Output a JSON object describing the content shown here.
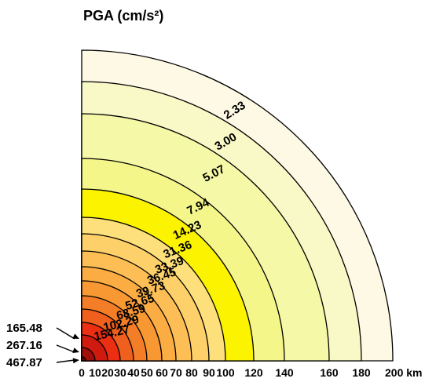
{
  "chart_data": {
    "type": "polar-contour",
    "title": "PGA (cm/s²)",
    "x_unit": "km",
    "x_ticks": [
      0,
      10,
      20,
      30,
      40,
      50,
      60,
      70,
      80,
      90,
      100,
      120,
      140,
      160,
      180,
      200
    ],
    "x_tick_labels": [
      "0",
      "10",
      "20",
      "30",
      "40",
      "50",
      "60",
      "70",
      "80",
      "90",
      "100",
      "120",
      "140",
      "160",
      "180"
    ],
    "x_unit_tick_label": "200 km",
    "xlim": [
      0,
      200
    ],
    "bands": [
      {
        "outer_km": 200,
        "pga": 2.33,
        "color": "#fdf9e4"
      },
      {
        "outer_km": 180,
        "pga": 3.0,
        "color": "#f8f9c6"
      },
      {
        "outer_km": 160,
        "pga": 5.07,
        "color": "#f5f8a6"
      },
      {
        "outer_km": 140,
        "pga": 7.94,
        "color": "#f4f68a"
      },
      {
        "outer_km": 120,
        "pga": 14.23,
        "color": "#fcf300"
      },
      {
        "outer_km": 100,
        "pga": 31.36,
        "color": "#fde07c"
      },
      {
        "outer_km": 90,
        "pga": 33.39,
        "color": "#fdd069"
      },
      {
        "outer_km": 80,
        "pga": 36.45,
        "color": "#fdbf55"
      },
      {
        "outer_km": 70,
        "pga": 39.73,
        "color": "#fbad43"
      },
      {
        "outer_km": 60,
        "pga": 52.65,
        "color": "#f79833"
      },
      {
        "outer_km": 50,
        "pga": 68.59,
        "color": "#f47d27"
      },
      {
        "outer_km": 40,
        "pga": 102.29,
        "color": "#ef5f1d"
      },
      {
        "outer_km": 30,
        "pga": 154.27,
        "color": "#ec2e12"
      },
      {
        "outer_km": 20,
        "pga": 165.48,
        "color": "#d11a0f"
      },
      {
        "outer_km": 10,
        "pga": 267.16,
        "color": "#a10f0a"
      },
      {
        "outer_km": 3,
        "pga": 467.87,
        "color": "#6a0606"
      }
    ],
    "ring_labels": [
      "2.33",
      "3.00",
      "5.07",
      "7.94",
      "14.23",
      "31.36",
      "33.39",
      "36.45",
      "39.73",
      "52.65",
      "68.59",
      "102.29",
      "154.27"
    ],
    "callouts": [
      "165.48",
      "267.16",
      "467.87"
    ]
  }
}
